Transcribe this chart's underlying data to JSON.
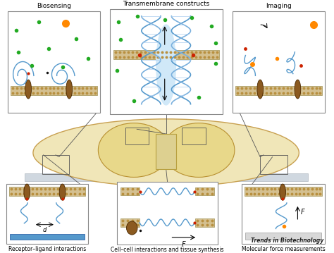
{
  "bg_color": "#ffffff",
  "top_labels": [
    "Biosensing",
    "Transmembrane constructs",
    "Imaging"
  ],
  "bottom_labels": [
    "Receptor–ligand interactions",
    "Cell–cell interactions and tissue synthesis",
    "Molecular force measurements"
  ],
  "brand_label": "Trends in Biotechnology",
  "cell_fill": "#f0e8c0",
  "cell_dark": "#ddd090",
  "cell_edge": "#c8a860",
  "membrane_color": "#d4c090",
  "membrane_head_color": "#c8a060",
  "protein_color": "#8B5a20",
  "dna_blue": "#5599cc",
  "dna_blue2": "#7ab0dd",
  "green_dot": "#22aa22",
  "red_dot": "#cc2200",
  "orange_dot": "#ff8800",
  "connector_color": "#555555",
  "box_edge": "#888888",
  "brand_color": "#222222"
}
